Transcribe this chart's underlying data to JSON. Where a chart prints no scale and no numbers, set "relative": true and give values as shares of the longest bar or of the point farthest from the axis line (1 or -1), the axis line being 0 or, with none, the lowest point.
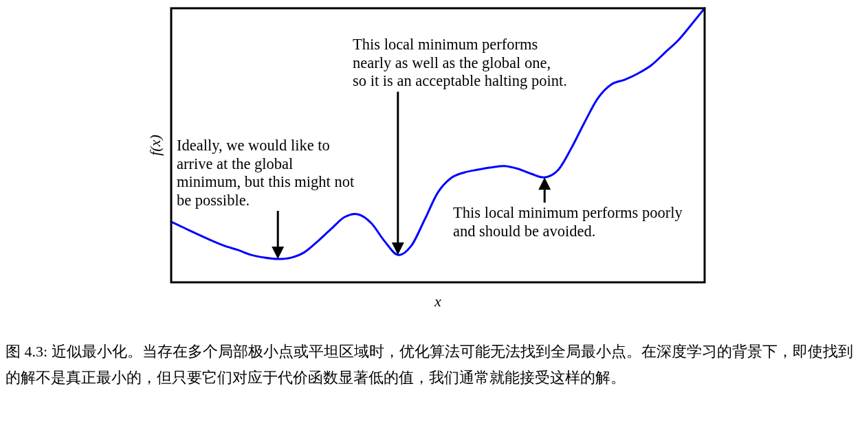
{
  "chart_data": {
    "type": "line",
    "relative": true,
    "xlabel": "x",
    "ylabel": "f(x)",
    "categories": [
      null,
      null,
      null,
      null,
      null,
      null,
      null,
      null,
      null,
      null,
      null,
      null,
      null,
      null,
      null,
      null,
      null,
      null,
      null,
      null,
      null,
      null,
      null,
      null,
      null,
      null,
      null,
      null,
      null,
      null,
      null,
      null,
      null,
      null,
      null,
      null,
      null,
      null,
      null,
      null,
      null
    ],
    "series": [
      {
        "color": "#0000ff",
        "values": [
          0.221,
          0.198,
          0.175,
          0.153,
          0.133,
          0.118,
          0.1,
          0.09,
          0.085,
          0.09,
          0.11,
          0.15,
          0.195,
          0.238,
          0.248,
          0.216,
          0.15,
          0.1,
          0.133,
          0.228,
          0.328,
          0.381,
          0.401,
          0.411,
          0.419,
          0.424,
          0.414,
          0.396,
          0.383,
          0.409,
          0.489,
          0.584,
          0.672,
          0.722,
          0.739,
          0.762,
          0.792,
          0.837,
          0.882,
          0.94,
          1.0
        ]
      }
    ],
    "annotations": [
      "Ideally, we would like to arrive at the global minimum, but this might not be possible.",
      "This local minimum performs nearly as well as the global one, so it is an acceptable halting point.",
      "This local minimum performs poorly and should be avoided.",
      "图 4.3: 近似最小化。当存在多个局部极小点或平坦区域时，优化算法可能无法找到全局最小点。在深度学习的背景下，即使找到的解不是真正最小的，但只要它们对应于代价函数显著低的值，我们通常就能接受这样的解。"
    ]
  }
}
